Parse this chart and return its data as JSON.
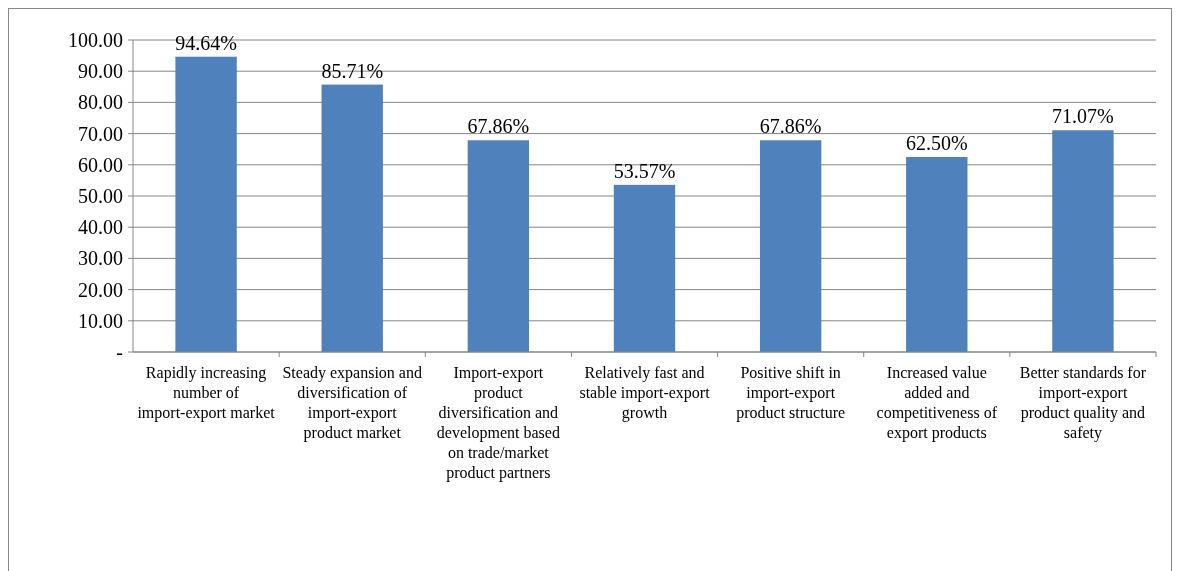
{
  "chart_data": {
    "type": "bar",
    "categories": [
      "Rapidly increasing number of import-export market",
      "Steady expansion and diversification of import-export product market",
      "Import-export product diversification and development based on trade/market product partners",
      "Relatively fast and stable import-export growth",
      "Positive shift in import-export product structure",
      "Increased value added and competitiveness of export products",
      "Better standards for import-export product quality and safety"
    ],
    "values": [
      94.64,
      85.71,
      67.86,
      53.57,
      67.86,
      62.5,
      71.07
    ],
    "value_labels": [
      "94.64%",
      "85.71%",
      "67.86%",
      "53.57%",
      "67.86%",
      "62.50%",
      "71.07%"
    ],
    "color": "#4f81bd",
    "ylim": [
      0,
      100
    ],
    "yticks": [
      {
        "value": 0,
        "label": "-"
      },
      {
        "value": 10,
        "label": "10.00"
      },
      {
        "value": 20,
        "label": "20.00"
      },
      {
        "value": 30,
        "label": "30.00"
      },
      {
        "value": 40,
        "label": "40.00"
      },
      {
        "value": 50,
        "label": "50.00"
      },
      {
        "value": 60,
        "label": "60.00"
      },
      {
        "value": 70,
        "label": "70.00"
      },
      {
        "value": 80,
        "label": "80.00"
      },
      {
        "value": 90,
        "label": "90.00"
      },
      {
        "value": 100,
        "label": "100.00"
      }
    ],
    "grid": "y"
  }
}
